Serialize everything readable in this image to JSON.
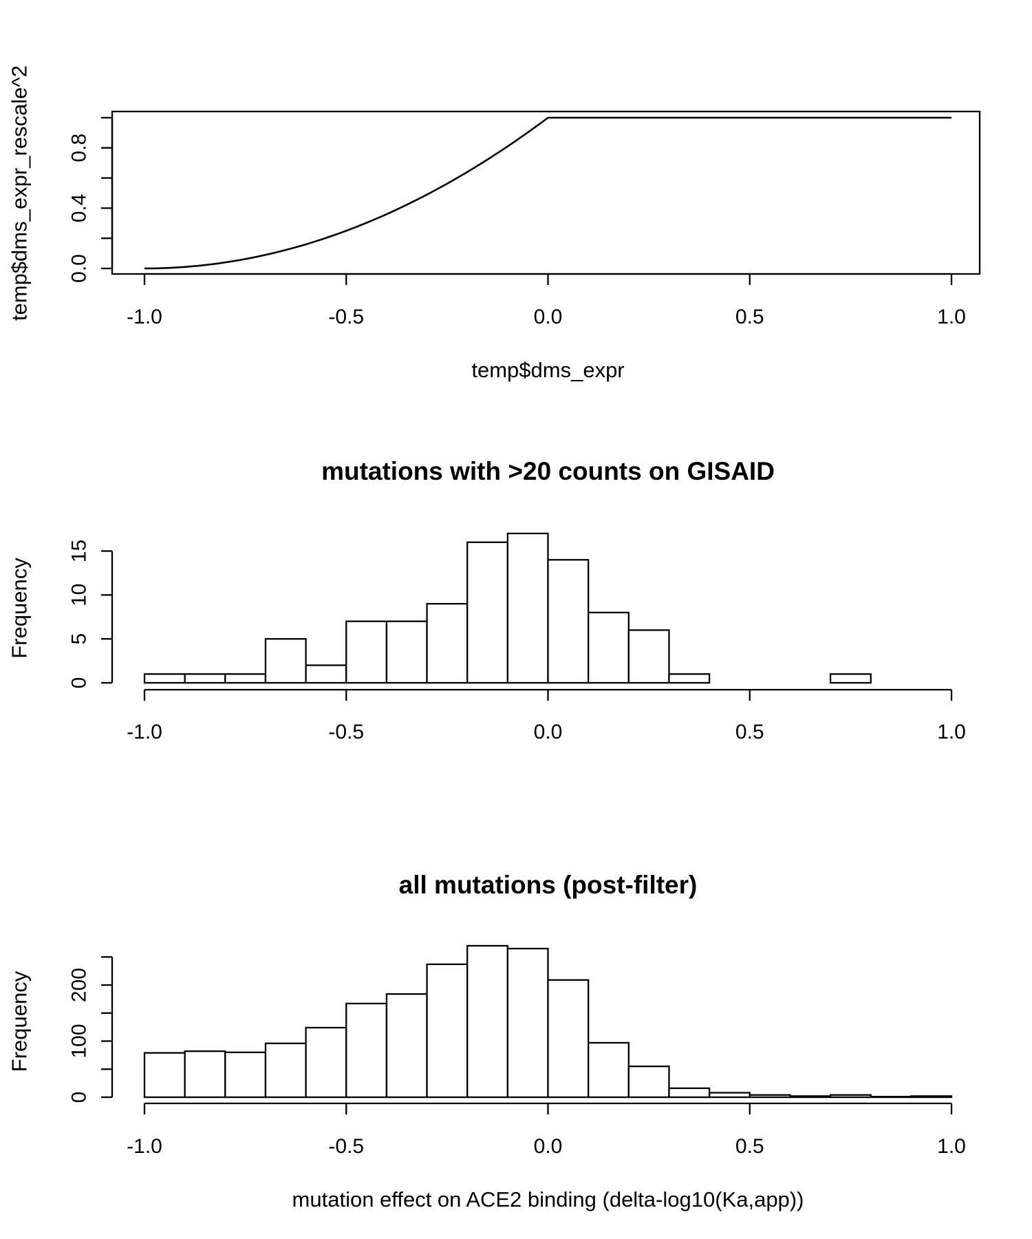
{
  "chart_data": [
    {
      "type": "line",
      "title": "",
      "xlabel": "temp$dms_expr",
      "ylabel": "temp$dms_expr_rescale^2",
      "xlim": [
        -1.0,
        1.0
      ],
      "ylim": [
        0.0,
        1.0
      ],
      "x_ticks": [
        "-1.0",
        "-0.5",
        "0.0",
        "0.5",
        "1.0"
      ],
      "y_ticks": [
        "0.0",
        "0.4",
        "0.8"
      ],
      "y_tick_values": [
        0.0,
        0.4,
        0.8
      ],
      "y_minor_ticks": [
        0.2,
        0.6,
        1.0
      ],
      "curve": "y = (x+1)^2 for x <= 0, y = 1 for x > 0",
      "x": [
        -1.0,
        -0.9,
        -0.8,
        -0.7,
        -0.6,
        -0.5,
        -0.4,
        -0.3,
        -0.2,
        -0.1,
        0.0,
        0.25,
        0.5,
        0.75,
        1.0
      ],
      "y": [
        0.0,
        0.01,
        0.04,
        0.09,
        0.16,
        0.25,
        0.36,
        0.49,
        0.64,
        0.81,
        1.0,
        1.0,
        1.0,
        1.0,
        1.0
      ],
      "boxed": true,
      "grid": false
    },
    {
      "type": "bar",
      "title": "mutations with >20 counts on GISAID",
      "xlabel": "",
      "ylabel": "Frequency",
      "xlim": [
        -1.0,
        1.0
      ],
      "ylim": [
        0,
        17
      ],
      "x_ticks": [
        "-1.0",
        "-0.5",
        "0.0",
        "0.5",
        "1.0"
      ],
      "y_ticks": [
        "0",
        "5",
        "10",
        "15"
      ],
      "y_tick_values": [
        0,
        5,
        10,
        15
      ],
      "bin_edges": [
        -1.0,
        -0.9,
        -0.8,
        -0.7,
        -0.6,
        -0.5,
        -0.4,
        -0.3,
        -0.2,
        -0.1,
        0.0,
        0.1,
        0.2,
        0.3,
        0.4,
        0.5,
        0.6,
        0.7,
        0.8
      ],
      "values": [
        1,
        1,
        1,
        5,
        2,
        7,
        7,
        9,
        16,
        17,
        14,
        8,
        6,
        1,
        0,
        0,
        0,
        1
      ],
      "grid": false
    },
    {
      "type": "bar",
      "title": "all mutations (post-filter)",
      "xlabel": "mutation effect on ACE2 binding (delta-log10(Ka,app))",
      "ylabel": "Frequency",
      "xlim": [
        -1.0,
        1.0
      ],
      "ylim": [
        0,
        270
      ],
      "x_ticks": [
        "-1.0",
        "-0.5",
        "0.0",
        "0.5",
        "1.0"
      ],
      "y_ticks": [
        "0",
        "100",
        "200"
      ],
      "y_tick_values": [
        0,
        100,
        200
      ],
      "y_minor_ticks": [
        50,
        150,
        250
      ],
      "bin_edges": [
        -1.0,
        -0.9,
        -0.8,
        -0.7,
        -0.6,
        -0.5,
        -0.4,
        -0.3,
        -0.2,
        -0.1,
        0.0,
        0.1,
        0.2,
        0.3,
        0.4,
        0.5,
        0.6,
        0.7,
        0.8,
        0.9,
        1.0
      ],
      "values": [
        79,
        82,
        80,
        96,
        124,
        167,
        184,
        237,
        270,
        265,
        209,
        97,
        55,
        16,
        8,
        4,
        2,
        4,
        1,
        2
      ],
      "grid": false
    }
  ]
}
